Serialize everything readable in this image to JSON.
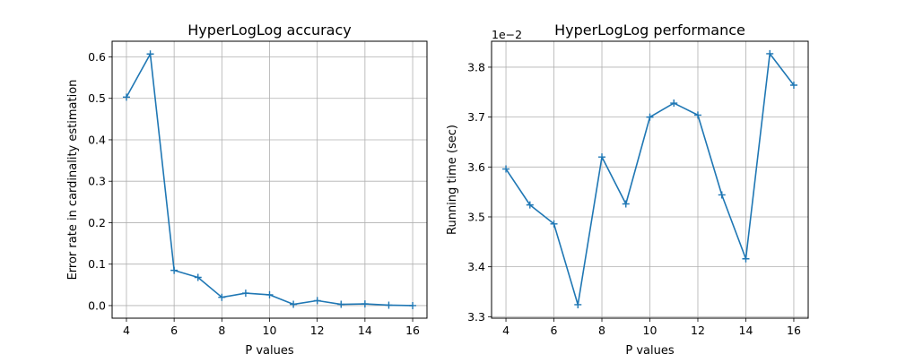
{
  "chart_data": [
    {
      "type": "line",
      "title": "HyperLogLog accuracy",
      "xlabel": "P values",
      "ylabel": "Error rate in cardinality estimation",
      "x": [
        4,
        5,
        6,
        7,
        8,
        9,
        10,
        11,
        12,
        13,
        14,
        15,
        16
      ],
      "series": [
        {
          "values": [
            0.503,
            0.607,
            0.085,
            0.068,
            0.02,
            0.03,
            0.026,
            0.003,
            0.012,
            0.003,
            0.004,
            0.001,
            0.0
          ],
          "color": "#1f77b4",
          "marker": "+"
        }
      ],
      "xlim": [
        3.4,
        16.6
      ],
      "ylim": [
        -0.0304,
        0.6378
      ],
      "xticks": [
        4,
        6,
        8,
        10,
        12,
        14,
        16
      ],
      "xtick_labels": [
        "4",
        "6",
        "8",
        "10",
        "12",
        "14",
        "16"
      ],
      "yticks": [
        0.0,
        0.1,
        0.2,
        0.3,
        0.4,
        0.5,
        0.6
      ],
      "ytick_labels": [
        "0.0",
        "0.1",
        "0.2",
        "0.3",
        "0.4",
        "0.5",
        "0.6"
      ],
      "grid": true
    },
    {
      "type": "line",
      "title": "HyperLogLog performance",
      "xlabel": "P values",
      "ylabel": "Running time (sec)",
      "offset_text": "1e−2",
      "x": [
        4,
        5,
        6,
        7,
        8,
        9,
        10,
        11,
        12,
        13,
        14,
        15,
        16
      ],
      "series": [
        {
          "values": [
            3.596,
            3.524,
            3.486,
            3.324,
            3.62,
            3.526,
            3.7,
            3.728,
            3.704,
            3.544,
            3.416,
            3.827,
            3.764
          ],
          "color": "#1f77b4",
          "marker": "+"
        }
      ],
      "xlim": [
        3.4,
        16.6
      ],
      "ylim": [
        3.297,
        3.852
      ],
      "xticks": [
        4,
        6,
        8,
        10,
        12,
        14,
        16
      ],
      "xtick_labels": [
        "4",
        "6",
        "8",
        "10",
        "12",
        "14",
        "16"
      ],
      "yticks": [
        3.3,
        3.4,
        3.5,
        3.6,
        3.7,
        3.8
      ],
      "ytick_labels": [
        "3.3",
        "3.4",
        "3.5",
        "3.6",
        "3.7",
        "3.8"
      ],
      "grid": true
    }
  ]
}
